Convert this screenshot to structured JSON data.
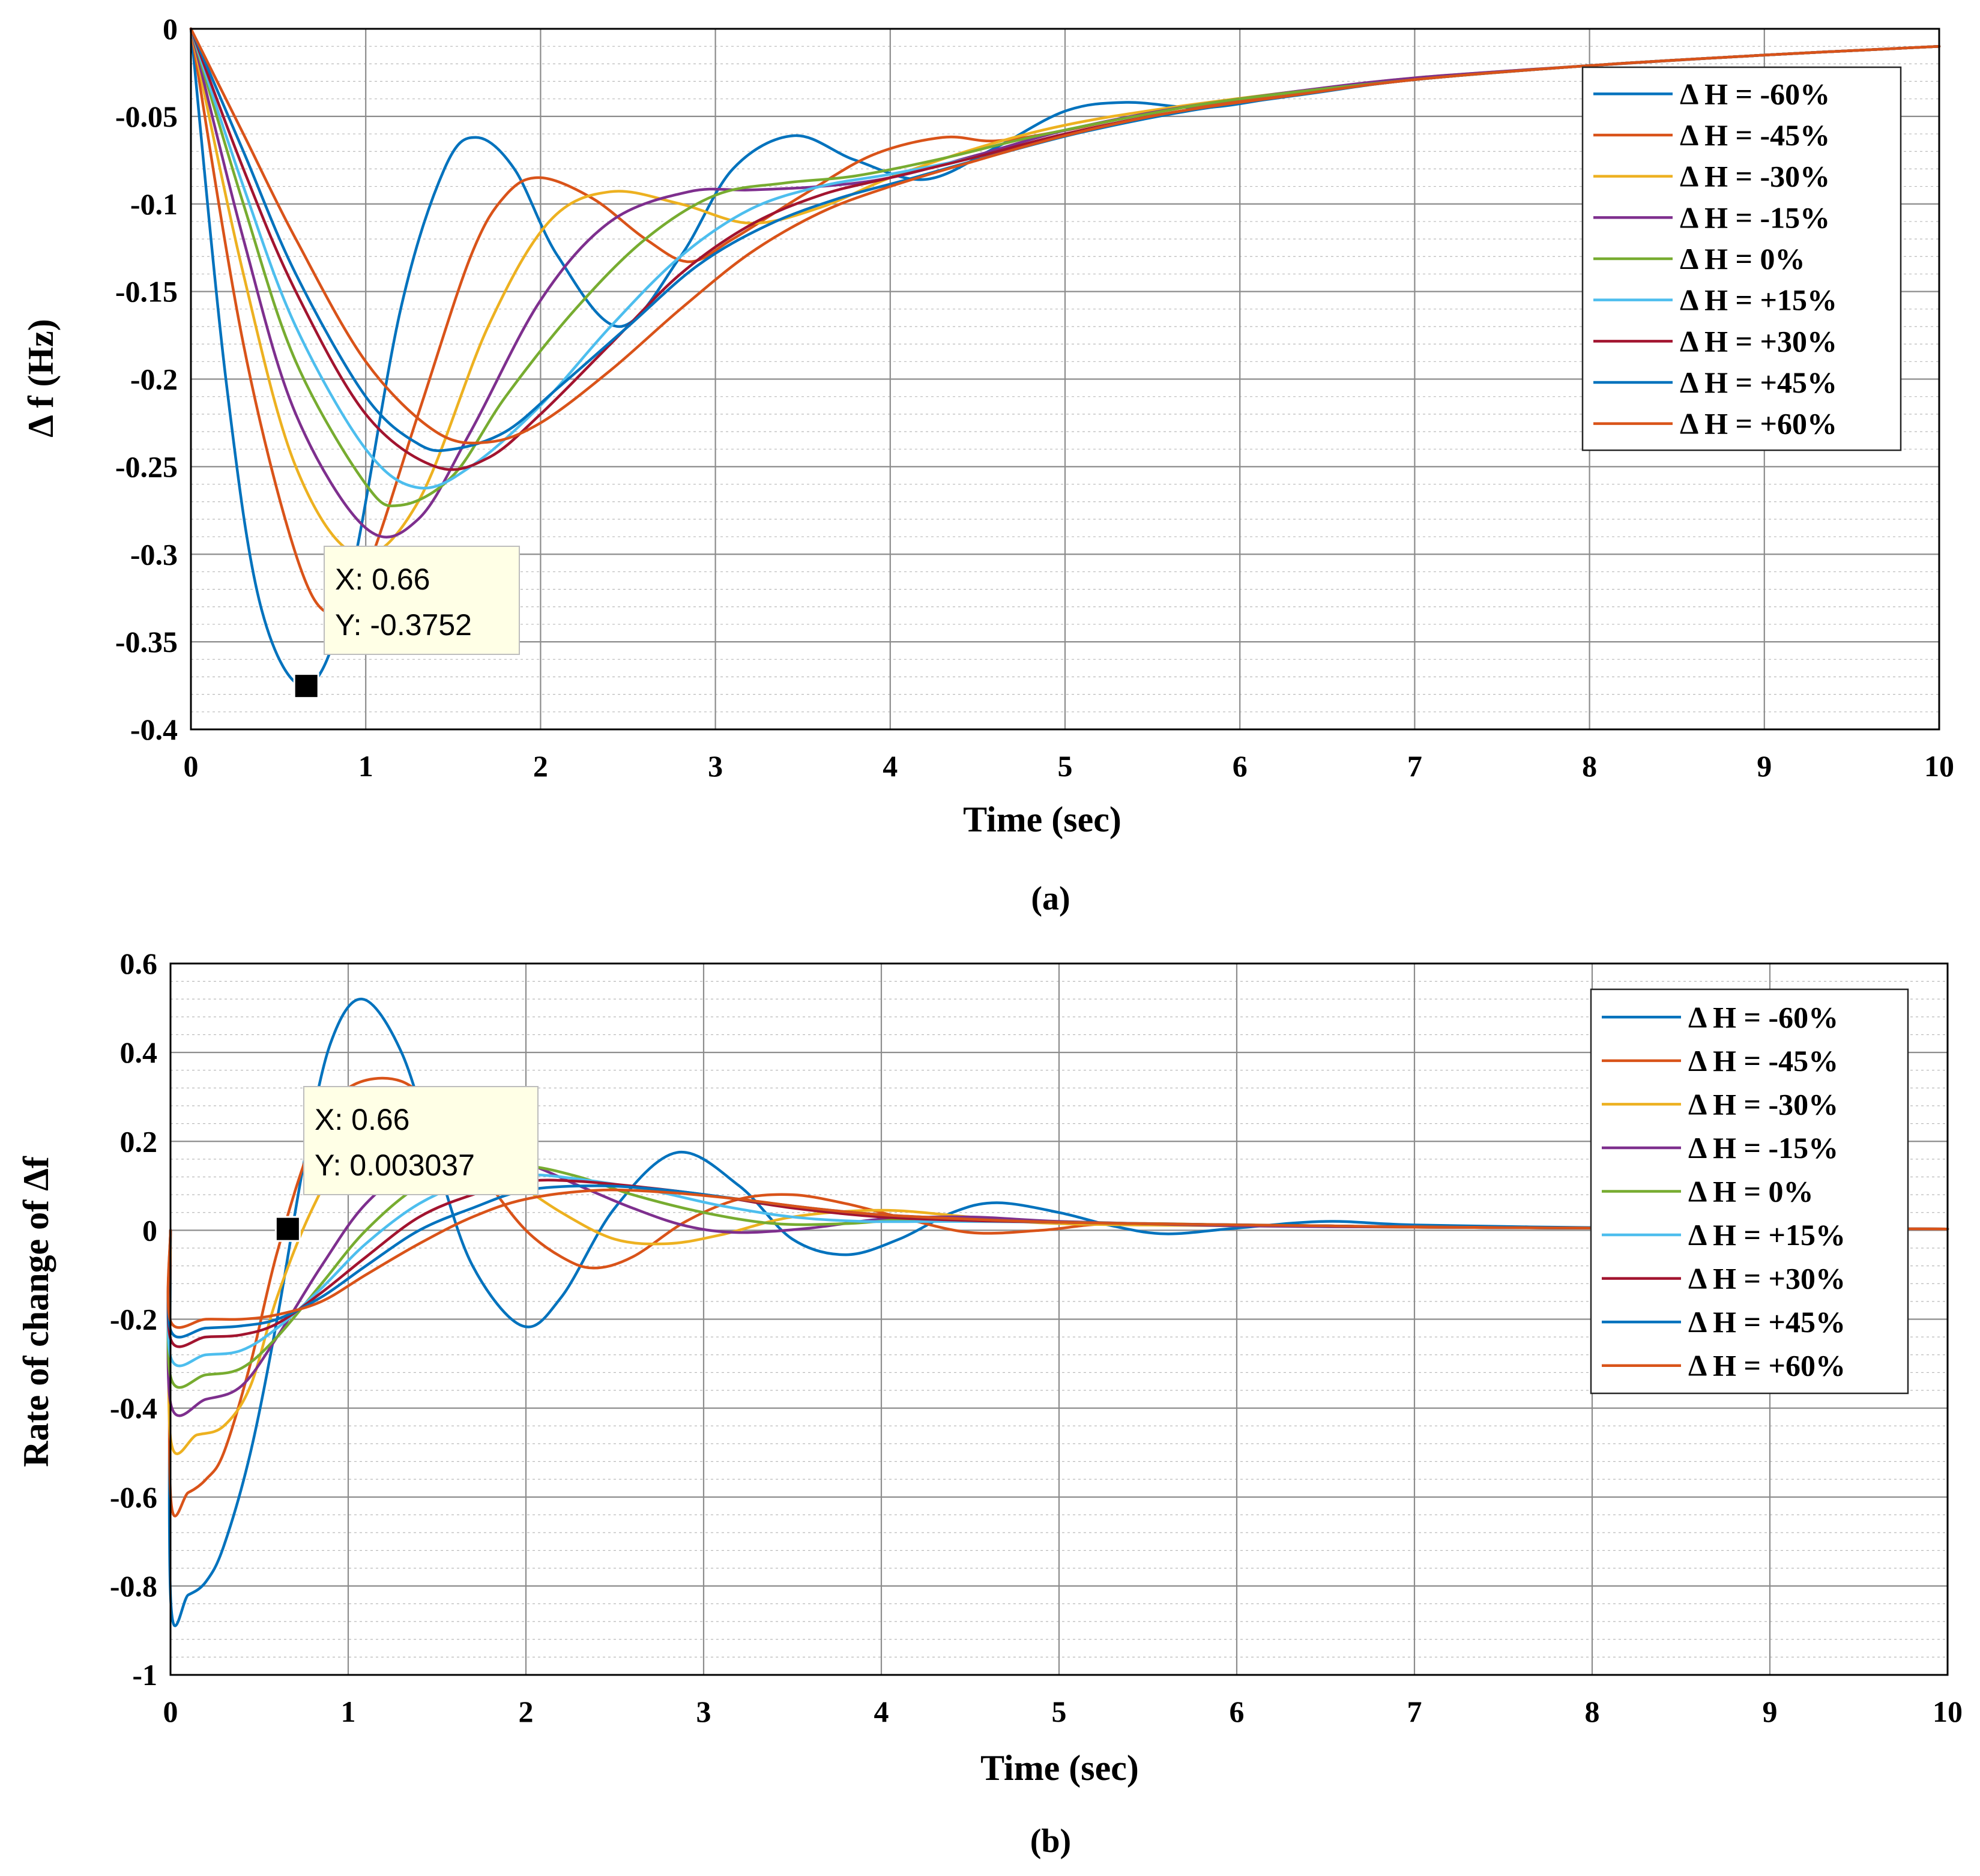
{
  "chart_data": [
    {
      "type": "line",
      "caption": "(a)",
      "xlabel": "Time (sec)",
      "ylabel": "Δ f (Hz)",
      "xlim": [
        0,
        10
      ],
      "ylim": [
        -0.4,
        0
      ],
      "grid": true,
      "minor_grid": true,
      "legend_position": "top-right",
      "x_ticks": [
        "0",
        "1",
        "2",
        "3",
        "4",
        "5",
        "6",
        "7",
        "8",
        "9",
        "10"
      ],
      "y_ticks": [
        "0",
        "-0.05",
        "-0.1",
        "-0.15",
        "-0.2",
        "-0.25",
        "-0.3",
        "-0.35",
        "-0.4"
      ],
      "datatip": {
        "x": 0.66,
        "y": -0.3752,
        "label_x": "X: 0.66",
        "label_y": "Y: -0.3752"
      },
      "series": [
        {
          "name": "Δ H = -60%",
          "color": "#0072BD",
          "x": [
            0,
            0.2,
            0.4,
            0.66,
            0.9,
            1.2,
            1.45,
            1.63,
            1.85,
            2.1,
            2.45,
            2.8,
            3.1,
            3.45,
            3.8,
            4.2,
            4.6,
            5.0,
            5.35,
            5.8,
            6.3,
            7,
            8,
            9,
            10
          ],
          "y": [
            0,
            -0.2,
            -0.33,
            -0.3752,
            -0.32,
            -0.16,
            -0.08,
            -0.062,
            -0.08,
            -0.13,
            -0.17,
            -0.13,
            -0.08,
            -0.061,
            -0.075,
            -0.086,
            -0.068,
            -0.047,
            -0.042,
            -0.045,
            -0.038,
            -0.029,
            -0.021,
            -0.015,
            -0.01
          ]
        },
        {
          "name": "Δ H = -45%",
          "color": "#D95319",
          "x": [
            0,
            0.3,
            0.6,
            0.8,
            1.0,
            1.3,
            1.6,
            1.8,
            2.0,
            2.3,
            2.6,
            2.85,
            3.1,
            3.5,
            3.9,
            4.3,
            4.6,
            5.0,
            5.6,
            6.2,
            7,
            8,
            9,
            10
          ],
          "y": [
            0,
            -0.18,
            -0.3,
            -0.334,
            -0.31,
            -0.22,
            -0.13,
            -0.095,
            -0.085,
            -0.097,
            -0.12,
            -0.133,
            -0.12,
            -0.095,
            -0.072,
            -0.062,
            -0.064,
            -0.058,
            -0.046,
            -0.039,
            -0.029,
            -0.021,
            -0.015,
            -0.01
          ]
        },
        {
          "name": "Δ H = -30%",
          "color": "#EDB120",
          "x": [
            0,
            0.3,
            0.6,
            0.95,
            1.3,
            1.7,
            2.05,
            2.4,
            2.8,
            3.2,
            3.6,
            4.0,
            4.5,
            5.0,
            5.6,
            6.3,
            7,
            8,
            9,
            10
          ],
          "y": [
            0,
            -0.14,
            -0.25,
            -0.3,
            -0.27,
            -0.17,
            -0.11,
            -0.093,
            -0.1,
            -0.111,
            -0.102,
            -0.085,
            -0.068,
            -0.055,
            -0.045,
            -0.036,
            -0.028,
            -0.021,
            -0.015,
            -0.01
          ]
        },
        {
          "name": "Δ H = -15%",
          "color": "#7E2F8E",
          "x": [
            0,
            0.3,
            0.6,
            1.0,
            1.3,
            1.6,
            2.0,
            2.4,
            2.85,
            3.2,
            3.6,
            4.0,
            4.5,
            5.0,
            5.6,
            6.3,
            7,
            8,
            9,
            10
          ],
          "y": [
            0,
            -0.12,
            -0.22,
            -0.285,
            -0.28,
            -0.23,
            -0.155,
            -0.11,
            -0.093,
            -0.092,
            -0.09,
            -0.085,
            -0.072,
            -0.058,
            -0.046,
            -0.036,
            -0.028,
            -0.021,
            -0.015,
            -0.01
          ]
        },
        {
          "name": "Δ H = 0%",
          "color": "#77AC30",
          "x": [
            0,
            0.3,
            0.6,
            1.0,
            1.2,
            1.5,
            1.8,
            2.2,
            2.6,
            3.0,
            3.4,
            3.8,
            4.3,
            4.8,
            5.4,
            6.0,
            7,
            8,
            9,
            10
          ],
          "y": [
            0,
            -0.1,
            -0.19,
            -0.26,
            -0.272,
            -0.255,
            -0.21,
            -0.16,
            -0.12,
            -0.095,
            -0.088,
            -0.084,
            -0.074,
            -0.062,
            -0.05,
            -0.04,
            -0.029,
            -0.021,
            -0.015,
            -0.01
          ]
        },
        {
          "name": "Δ H = +15%",
          "color": "#4DBEEE",
          "x": [
            0,
            0.3,
            0.6,
            1.0,
            1.3,
            1.6,
            2.0,
            2.4,
            2.8,
            3.2,
            3.6,
            4.0,
            4.5,
            5.0,
            5.6,
            6.3,
            7,
            8,
            9,
            10
          ],
          "y": [
            0,
            -0.09,
            -0.17,
            -0.24,
            -0.262,
            -0.25,
            -0.215,
            -0.17,
            -0.13,
            -0.103,
            -0.09,
            -0.083,
            -0.073,
            -0.06,
            -0.048,
            -0.038,
            -0.029,
            -0.021,
            -0.015,
            -0.01
          ]
        },
        {
          "name": "Δ H = +30%",
          "color": "#A2142F",
          "x": [
            0,
            0.3,
            0.6,
            1.0,
            1.4,
            1.7,
            2.0,
            2.4,
            2.8,
            3.2,
            3.6,
            4.0,
            4.5,
            5.0,
            5.6,
            6.3,
            7,
            8,
            9,
            10
          ],
          "y": [
            0,
            -0.08,
            -0.15,
            -0.22,
            -0.25,
            -0.245,
            -0.22,
            -0.18,
            -0.14,
            -0.112,
            -0.095,
            -0.085,
            -0.073,
            -0.06,
            -0.048,
            -0.038,
            -0.029,
            -0.021,
            -0.015,
            -0.01
          ]
        },
        {
          "name": "Δ H = +45%",
          "color": "#0072BD",
          "x": [
            0,
            0.3,
            0.6,
            1.0,
            1.3,
            1.5,
            1.8,
            2.1,
            2.5,
            2.9,
            3.3,
            3.7,
            4.1,
            4.6,
            5.1,
            5.7,
            6.4,
            7,
            8,
            9,
            10
          ],
          "y": [
            0,
            -0.07,
            -0.14,
            -0.21,
            -0.237,
            -0.24,
            -0.23,
            -0.205,
            -0.17,
            -0.135,
            -0.112,
            -0.097,
            -0.086,
            -0.072,
            -0.059,
            -0.047,
            -0.037,
            -0.029,
            -0.021,
            -0.015,
            -0.01
          ]
        },
        {
          "name": "Δ H = +60%",
          "color": "#D95319",
          "x": [
            0,
            0.3,
            0.6,
            1.0,
            1.4,
            1.7,
            2.0,
            2.4,
            2.8,
            3.2,
            3.6,
            4.0,
            4.5,
            5.0,
            5.6,
            6.3,
            7,
            8,
            9,
            10
          ],
          "y": [
            0,
            -0.06,
            -0.12,
            -0.19,
            -0.23,
            -0.236,
            -0.225,
            -0.195,
            -0.16,
            -0.128,
            -0.105,
            -0.09,
            -0.075,
            -0.061,
            -0.048,
            -0.038,
            -0.029,
            -0.021,
            -0.015,
            -0.01
          ]
        }
      ]
    },
    {
      "type": "line",
      "caption": "(b)",
      "xlabel": "Time (sec)",
      "ylabel": "Rate of change of Δf",
      "xlim": [
        0,
        10
      ],
      "ylim": [
        -1,
        0.6
      ],
      "grid": true,
      "minor_grid": true,
      "legend_position": "top-right",
      "x_ticks": [
        "0",
        "1",
        "2",
        "3",
        "4",
        "5",
        "6",
        "7",
        "8",
        "9",
        "10"
      ],
      "y_ticks": [
        "0.6",
        "0.4",
        "0.2",
        "0",
        "-0.2",
        "-0.4",
        "-0.6",
        "-0.8",
        "-1"
      ],
      "datatip": {
        "x": 0.66,
        "y": 0.003037,
        "label_x": "X: 0.66",
        "label_y": "Y: 0.003037"
      },
      "series": [
        {
          "name": "Δ H = -60%",
          "color": "#0072BD",
          "x": [
            0,
            0.001,
            0.1,
            0.2,
            0.3,
            0.45,
            0.6,
            0.75,
            0.9,
            1.08,
            1.3,
            1.5,
            1.7,
            1.98,
            2.2,
            2.5,
            2.85,
            3.2,
            3.5,
            3.8,
            4.1,
            4.4,
            4.65,
            5.0,
            5.3,
            5.6,
            6.0,
            6.5,
            7,
            8,
            9,
            10
          ],
          "y": [
            0,
            -0.83,
            -0.82,
            -0.79,
            -0.71,
            -0.5,
            -0.2,
            0.15,
            0.42,
            0.52,
            0.4,
            0.15,
            -0.08,
            -0.215,
            -0.15,
            0.05,
            0.175,
            0.1,
            -0.02,
            -0.055,
            -0.02,
            0.04,
            0.062,
            0.04,
            0.01,
            -0.008,
            0.005,
            0.02,
            0.012,
            0.006,
            0.004,
            0.003
          ]
        },
        {
          "name": "Δ H = -45%",
          "color": "#D95319",
          "x": [
            0,
            0.001,
            0.1,
            0.2,
            0.3,
            0.45,
            0.6,
            0.8,
            1.0,
            1.3,
            1.55,
            1.8,
            2.0,
            2.2,
            2.38,
            2.6,
            2.9,
            3.2,
            3.5,
            3.8,
            4.1,
            4.5,
            4.9,
            5.3,
            6,
            7,
            8,
            9,
            10
          ],
          "y": [
            0,
            -0.6,
            -0.59,
            -0.56,
            -0.5,
            -0.3,
            -0.05,
            0.2,
            0.32,
            0.335,
            0.24,
            0.1,
            0.0,
            -0.06,
            -0.085,
            -0.06,
            0.02,
            0.07,
            0.08,
            0.06,
            0.03,
            -0.005,
            0.0,
            0.015,
            0.012,
            0.008,
            0.005,
            0.004,
            0.003
          ]
        },
        {
          "name": "Δ H = -30%",
          "color": "#EDB120",
          "x": [
            0,
            0.001,
            0.15,
            0.3,
            0.45,
            0.6,
            0.8,
            1.0,
            1.3,
            1.6,
            1.9,
            2.2,
            2.5,
            2.8,
            3.1,
            3.5,
            4.0,
            4.5,
            5.0,
            6,
            7,
            8,
            9,
            10
          ],
          "y": [
            0,
            -0.47,
            -0.46,
            -0.44,
            -0.35,
            -0.15,
            0.05,
            0.18,
            0.24,
            0.2,
            0.12,
            0.04,
            -0.02,
            -0.03,
            -0.01,
            0.03,
            0.045,
            0.03,
            0.015,
            0.01,
            0.007,
            0.005,
            0.004,
            0.003
          ]
        },
        {
          "name": "Δ H = -15%",
          "color": "#7E2F8E",
          "x": [
            0,
            0.001,
            0.2,
            0.4,
            0.6,
            0.85,
            1.1,
            1.4,
            1.7,
            2.0,
            2.3,
            2.6,
            2.9,
            3.2,
            3.6,
            4.0,
            4.5,
            5.0,
            6,
            7,
            8,
            9,
            10
          ],
          "y": [
            0,
            -0.39,
            -0.38,
            -0.35,
            -0.24,
            -0.08,
            0.06,
            0.15,
            0.17,
            0.15,
            0.1,
            0.05,
            0.01,
            -0.005,
            0.005,
            0.025,
            0.03,
            0.02,
            0.01,
            0.007,
            0.005,
            0.004,
            0.003
          ]
        },
        {
          "name": "Δ H = 0%",
          "color": "#77AC30",
          "x": [
            0,
            0.001,
            0.2,
            0.4,
            0.6,
            0.85,
            1.1,
            1.4,
            1.7,
            2.0,
            2.3,
            2.6,
            3.0,
            3.4,
            3.8,
            4.2,
            4.8,
            5.5,
            6.5,
            7,
            8,
            9,
            10
          ],
          "y": [
            0,
            -0.33,
            -0.325,
            -0.31,
            -0.24,
            -0.12,
            0.0,
            0.1,
            0.14,
            0.145,
            0.12,
            0.08,
            0.04,
            0.015,
            0.015,
            0.025,
            0.02,
            0.015,
            0.01,
            0.007,
            0.005,
            0.004,
            0.003
          ]
        },
        {
          "name": "Δ H = +15%",
          "color": "#4DBEEE",
          "x": [
            0,
            0.001,
            0.2,
            0.4,
            0.6,
            0.85,
            1.1,
            1.4,
            1.7,
            2.0,
            2.3,
            2.7,
            3.1,
            3.5,
            3.9,
            4.4,
            5.0,
            5.6,
            6.5,
            7,
            8,
            9,
            10
          ],
          "y": [
            0,
            -0.285,
            -0.28,
            -0.27,
            -0.22,
            -0.13,
            -0.03,
            0.06,
            0.11,
            0.125,
            0.115,
            0.09,
            0.055,
            0.03,
            0.02,
            0.02,
            0.018,
            0.014,
            0.01,
            0.007,
            0.005,
            0.004,
            0.003
          ]
        },
        {
          "name": "Δ H = +30%",
          "color": "#A2142F",
          "x": [
            0,
            0.001,
            0.2,
            0.4,
            0.6,
            0.85,
            1.1,
            1.4,
            1.7,
            2.0,
            2.3,
            2.7,
            3.1,
            3.5,
            4.0,
            4.5,
            5.0,
            5.6,
            6.5,
            7,
            8,
            9,
            10
          ],
          "y": [
            0,
            -0.245,
            -0.24,
            -0.235,
            -0.21,
            -0.14,
            -0.06,
            0.03,
            0.08,
            0.11,
            0.11,
            0.095,
            0.075,
            0.05,
            0.03,
            0.022,
            0.018,
            0.014,
            0.01,
            0.007,
            0.005,
            0.004,
            0.003
          ]
        },
        {
          "name": "Δ H = +45%",
          "color": "#0072BD",
          "x": [
            0,
            0.001,
            0.2,
            0.4,
            0.6,
            0.85,
            1.1,
            1.4,
            1.7,
            2.0,
            2.4,
            2.8,
            3.2,
            3.6,
            4.0,
            4.5,
            5.0,
            5.6,
            6.5,
            7,
            8,
            9,
            10
          ],
          "y": [
            0,
            -0.225,
            -0.22,
            -0.215,
            -0.2,
            -0.15,
            -0.08,
            0.0,
            0.05,
            0.09,
            0.1,
            0.09,
            0.07,
            0.05,
            0.035,
            0.025,
            0.018,
            0.014,
            0.01,
            0.007,
            0.005,
            0.004,
            0.003
          ]
        },
        {
          "name": "Δ H = +60%",
          "color": "#D95319",
          "x": [
            0,
            0.001,
            0.2,
            0.4,
            0.6,
            0.85,
            1.1,
            1.4,
            1.7,
            2.0,
            2.4,
            2.8,
            3.2,
            3.6,
            4.0,
            4.5,
            5.0,
            5.6,
            6.5,
            7,
            8,
            9,
            10
          ],
          "y": [
            0,
            -0.205,
            -0.2,
            -0.2,
            -0.19,
            -0.16,
            -0.1,
            -0.03,
            0.03,
            0.07,
            0.09,
            0.085,
            0.07,
            0.05,
            0.035,
            0.025,
            0.018,
            0.014,
            0.01,
            0.007,
            0.005,
            0.004,
            0.003
          ]
        }
      ]
    }
  ]
}
